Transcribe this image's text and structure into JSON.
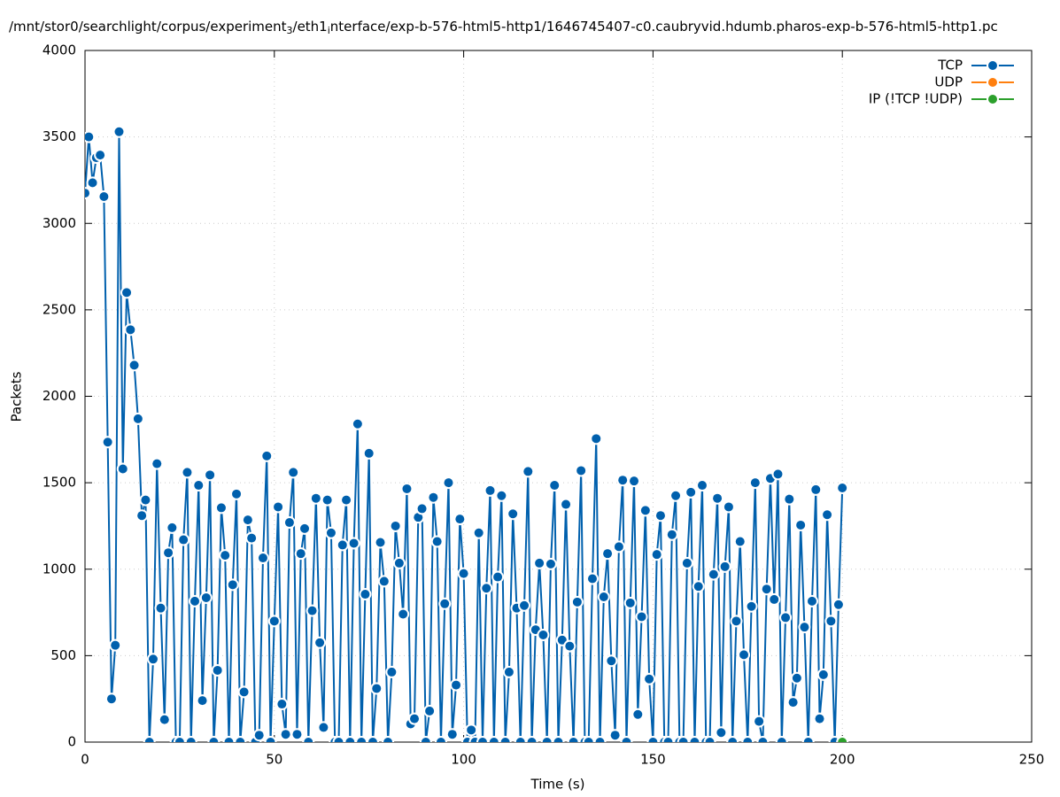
{
  "chart_data": {
    "type": "line",
    "title": [
      "/mnt/stor0/searchlight/corpus/experiment",
      "3",
      "/eth1",
      "i",
      "nterface/exp-b-576-html5-http1/1646745407-c0.caubryvid.hdumb.pharos-exp-b-576-html5-http1.pc"
    ],
    "x_label": "Time (s)",
    "y_label": "Packets",
    "xlim": [
      0,
      250
    ],
    "xticks": [
      0,
      50,
      100,
      150,
      200,
      250
    ],
    "ylim": [
      0,
      4000
    ],
    "yticks": [
      0,
      500,
      1000,
      1500,
      2000,
      2500,
      3000,
      3500,
      4000
    ],
    "grid": true,
    "legend": "upper right",
    "series": [
      {
        "name": "TCP",
        "color": "#0060ad",
        "x": [
          0,
          1,
          2,
          3,
          4,
          5,
          6,
          7,
          8,
          9,
          10,
          11,
          12,
          13,
          14,
          15,
          16,
          17,
          18,
          19,
          20,
          21,
          22,
          23,
          24,
          25,
          26,
          27,
          28,
          29,
          30,
          31,
          32,
          33,
          34,
          35,
          36,
          37,
          38,
          39,
          40,
          41,
          42,
          43,
          44,
          45,
          46,
          47,
          48,
          49,
          50,
          51,
          52,
          53,
          54,
          55,
          56,
          57,
          58,
          59,
          60,
          61,
          62,
          63,
          64,
          65,
          66,
          67,
          68,
          69,
          70,
          71,
          72,
          73,
          74,
          75,
          76,
          77,
          78,
          79,
          80,
          81,
          82,
          83,
          84,
          85,
          86,
          87,
          88,
          89,
          90,
          91,
          92,
          93,
          94,
          95,
          96,
          97,
          98,
          99,
          100,
          101,
          102,
          103,
          104,
          105,
          106,
          107,
          108,
          109,
          110,
          111,
          112,
          113,
          114,
          115,
          116,
          117,
          118,
          119,
          120,
          121,
          122,
          123,
          124,
          125,
          126,
          127,
          128,
          129,
          130,
          131,
          132,
          133,
          134,
          135,
          136,
          137,
          138,
          139,
          140,
          141,
          142,
          143,
          144,
          145,
          146,
          147,
          148,
          149,
          150,
          151,
          152,
          153,
          154,
          155,
          156,
          157,
          158,
          159,
          160,
          161,
          162,
          163,
          164,
          165,
          166,
          167,
          168,
          169,
          170,
          171,
          172,
          173,
          174,
          175,
          176,
          177,
          178,
          179,
          180,
          181,
          182,
          183,
          184,
          185,
          186,
          187,
          188,
          189,
          190,
          191,
          192,
          193,
          194,
          195,
          196,
          197,
          198,
          199,
          200
        ],
        "values": [
          3175,
          3500,
          3235,
          3380,
          3395,
          3155,
          1735,
          250,
          560,
          3530,
          1580,
          2600,
          2385,
          2180,
          1870,
          1310,
          1400,
          0,
          480,
          1610,
          775,
          130,
          1095,
          1240,
          0,
          0,
          1170,
          1560,
          0,
          815,
          1485,
          240,
          835,
          1545,
          0,
          415,
          1355,
          1080,
          0,
          910,
          1435,
          0,
          290,
          1285,
          1180,
          0,
          40,
          1065,
          1655,
          0,
          700,
          1360,
          220,
          45,
          1270,
          1560,
          45,
          1090,
          1235,
          0,
          760,
          1410,
          575,
          85,
          1400,
          1210,
          0,
          0,
          1140,
          1400,
          0,
          1150,
          1840,
          0,
          855,
          1670,
          0,
          310,
          1155,
          930,
          0,
          405,
          1250,
          1035,
          740,
          1465,
          105,
          135,
          1300,
          1350,
          0,
          180,
          1415,
          1160,
          0,
          800,
          1500,
          45,
          330,
          1290,
          975,
          0,
          70,
          0,
          1210,
          0,
          890,
          1455,
          0,
          955,
          1425,
          0,
          405,
          1320,
          775,
          0,
          790,
          1565,
          0,
          650,
          1035,
          620,
          0,
          1030,
          1485,
          0,
          590,
          1375,
          555,
          0,
          810,
          1570,
          0,
          0,
          945,
          1755,
          0,
          840,
          1090,
          470,
          40,
          1130,
          1515,
          0,
          805,
          1510,
          160,
          725,
          1340,
          365,
          0,
          1085,
          1310,
          0,
          0,
          1200,
          1425,
          0,
          0,
          1035,
          1445,
          0,
          900,
          1485,
          0,
          0,
          970,
          1410,
          55,
          1015,
          1360,
          0,
          700,
          1160,
          505,
          0,
          785,
          1500,
          120,
          0,
          885,
          1525,
          825,
          1550,
          0,
          720,
          1405,
          230,
          370,
          1255,
          665,
          0,
          815,
          1460,
          135,
          390,
          1315,
          700,
          0,
          795,
          1470
        ]
      },
      {
        "name": "UDP",
        "color": "#ff7f0e",
        "x": [],
        "values": []
      },
      {
        "name": "IP (!TCP  !UDP)",
        "color": "#2ca02c",
        "x": [
          200
        ],
        "values": [
          0
        ]
      }
    ]
  }
}
